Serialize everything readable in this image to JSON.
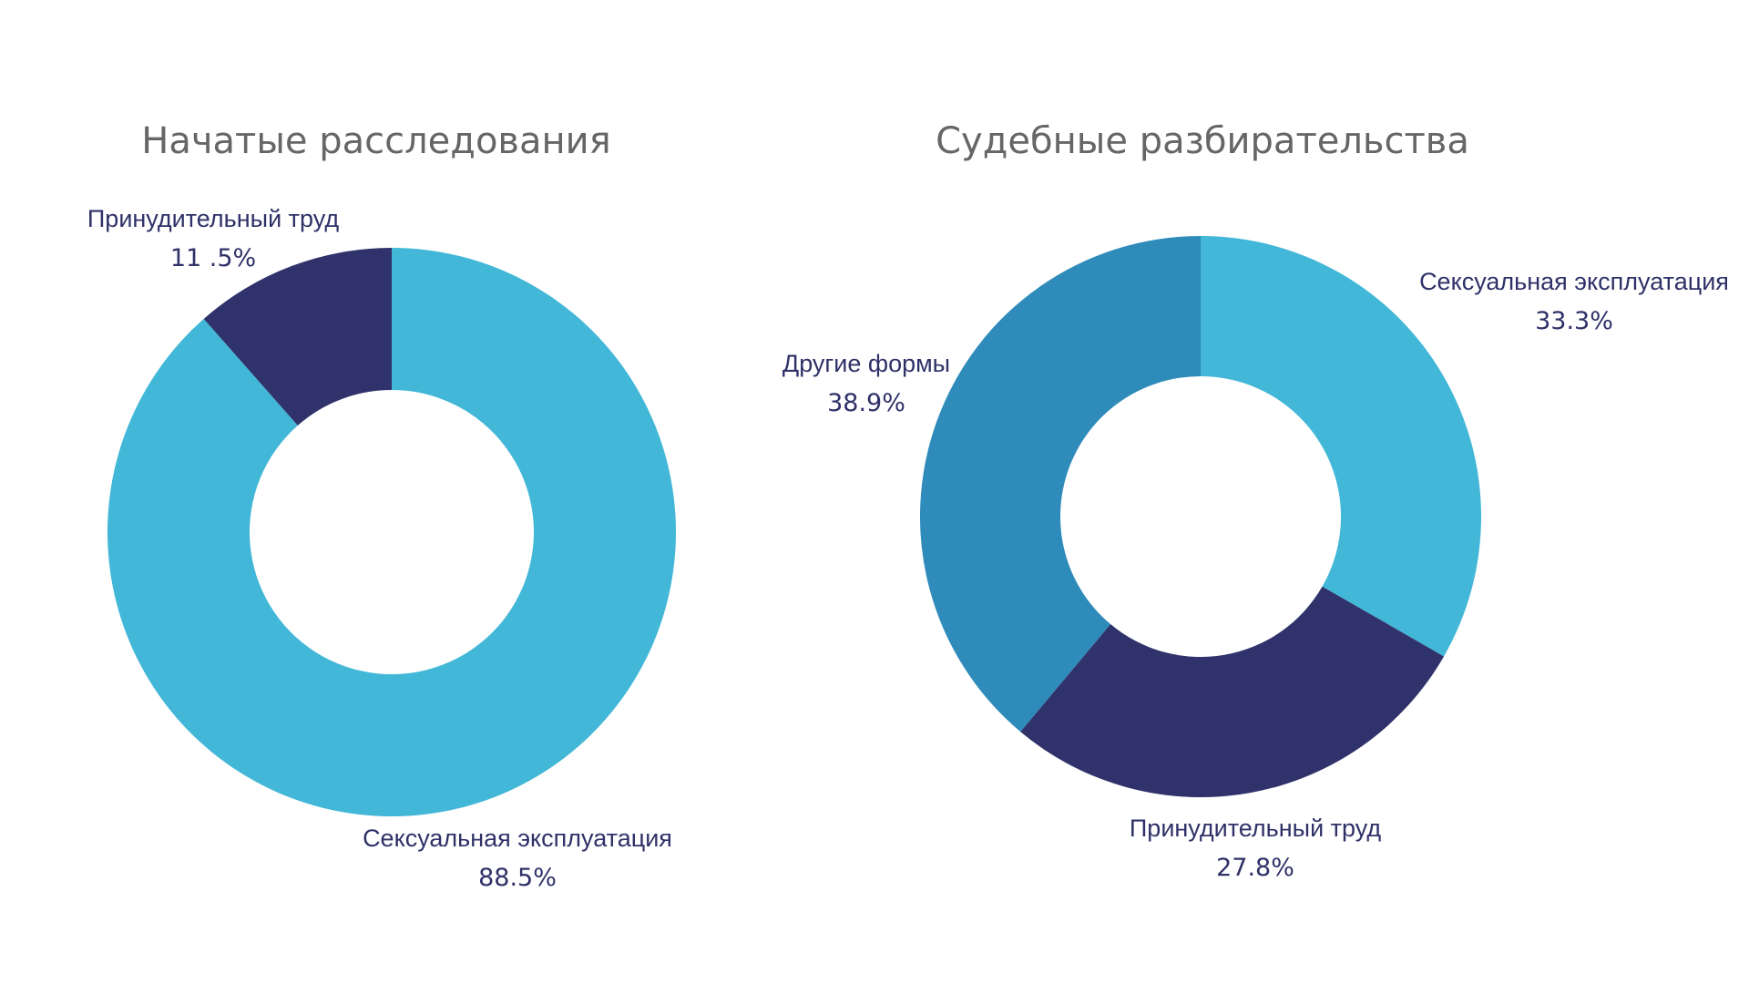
{
  "chart_data": [
    {
      "type": "pie",
      "donut": true,
      "title": "Начатые расследования",
      "slices": [
        {
          "label": "Сексуальная эксплуатация",
          "value": 88.5,
          "value_text": "88.5%",
          "color": "#42b7d7"
        },
        {
          "label": "Принудительный труд",
          "value": 11.5,
          "value_text": "11 .5%",
          "color": "#30336b"
        }
      ]
    },
    {
      "type": "pie",
      "donut": true,
      "title": "Судебные разбирательства",
      "slices": [
        {
          "label": "Сексуальная эксплуатация",
          "value": 33.3,
          "value_text": "33.3%",
          "color": "#42b7d7"
        },
        {
          "label": "Принудительный труд",
          "value": 27.8,
          "value_text": "27.8%",
          "color": "#30336b"
        },
        {
          "label": "Другие формы",
          "value": 38.9,
          "value_text": "38.9%",
          "color": "#2e8bba"
        }
      ]
    }
  ]
}
